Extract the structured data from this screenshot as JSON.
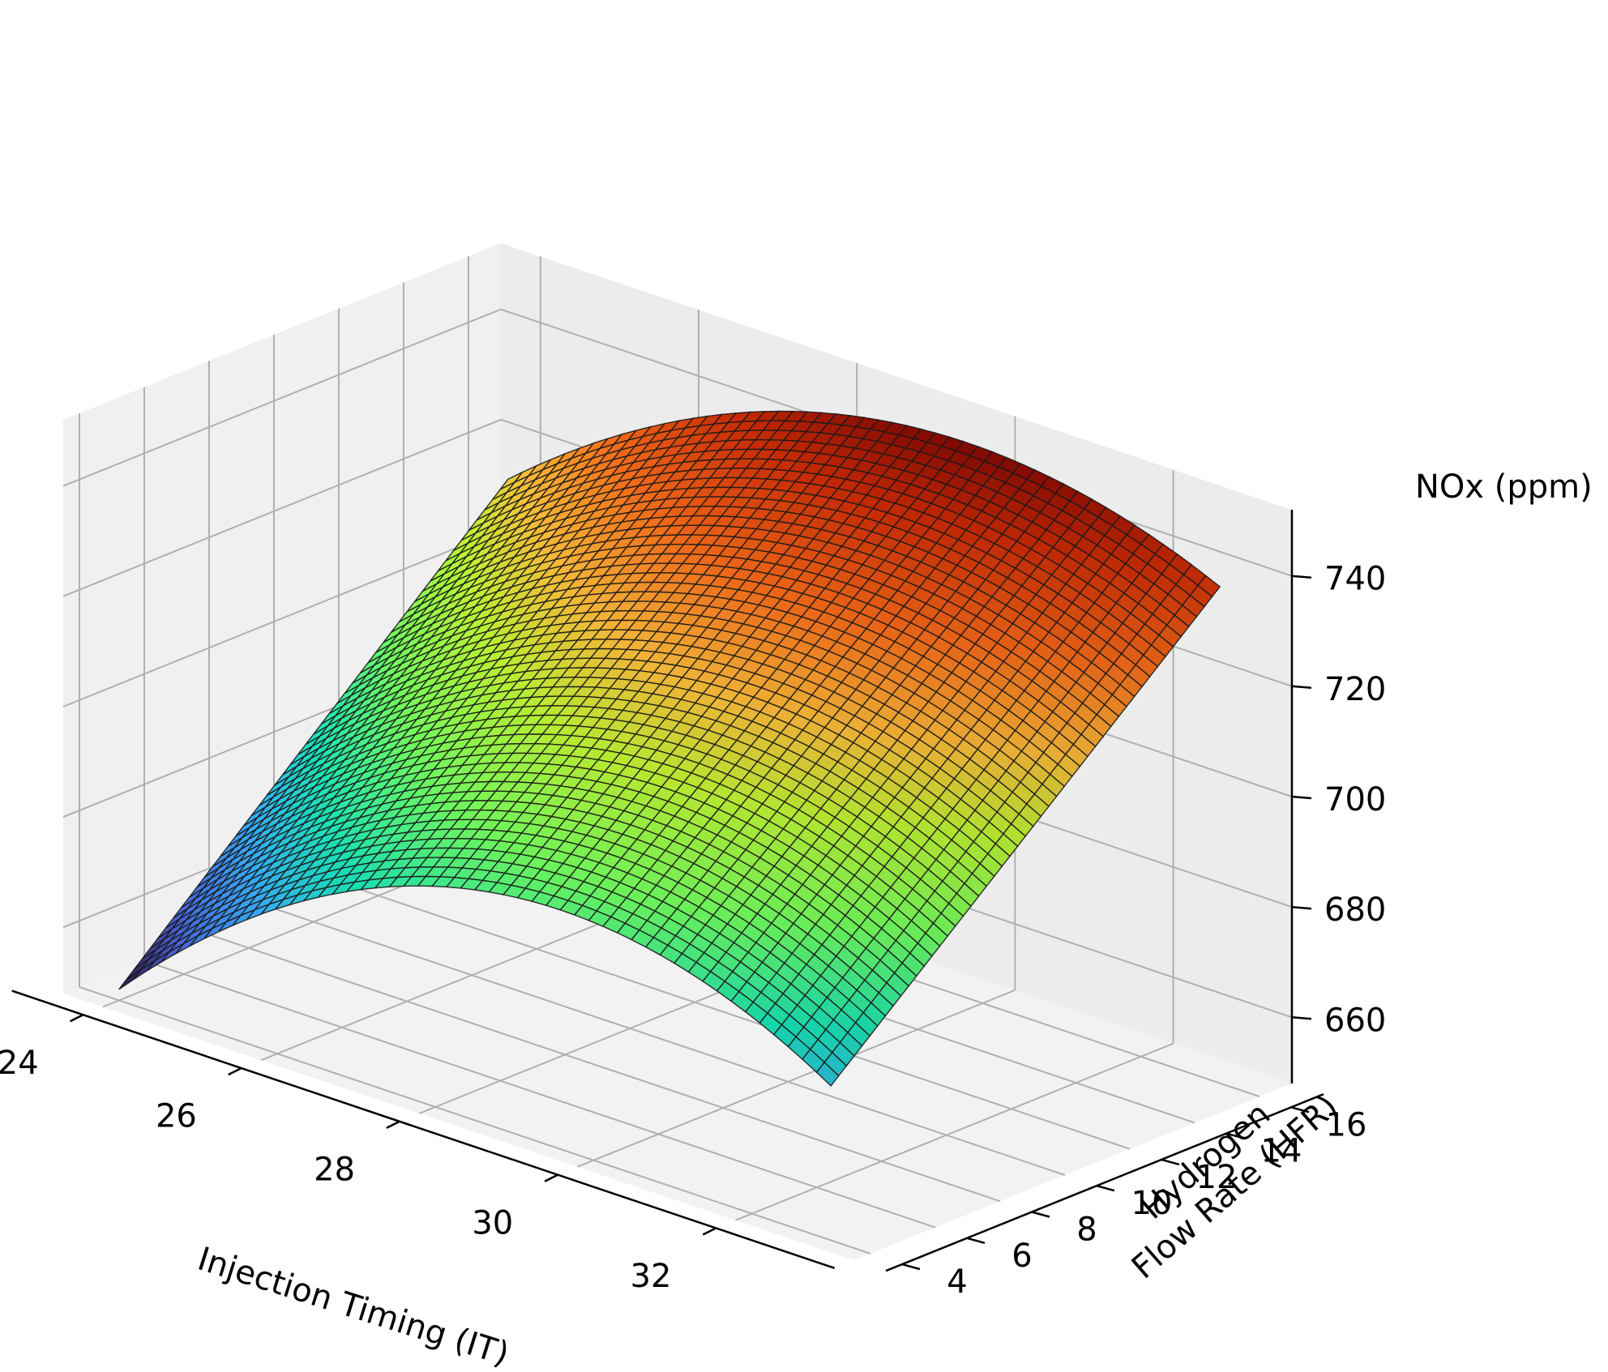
{
  "chart_data": {
    "type": "surface3d",
    "title": "",
    "x_axis": {
      "label": "Injection Timing (IT)",
      "range": [
        23.5,
        33.5
      ],
      "ticks": [
        24,
        26,
        28,
        30,
        32
      ]
    },
    "y_axis": {
      "label_lines": [
        "Hydrogen",
        "Flow Rate (HFR)"
      ],
      "range": [
        3.5,
        17
      ],
      "ticks": [
        4,
        6,
        8,
        10,
        12,
        14,
        16
      ]
    },
    "z_axis": {
      "label": "NOx (ppm)",
      "range": [
        648,
        752
      ],
      "ticks": [
        660,
        680,
        700,
        720,
        740
      ]
    },
    "grid": true,
    "colormap": "turbo",
    "color_range": [
      650,
      750
    ],
    "surface": {
      "x_range": [
        24,
        33
      ],
      "y_range": [
        4,
        16
      ],
      "resolution": 50,
      "samples": [
        {
          "x": 24,
          "y": 4,
          "z": 650
        },
        {
          "x": 28,
          "y": 4,
          "z": 688
        },
        {
          "x": 33,
          "y": 4,
          "z": 676
        },
        {
          "x": 24,
          "y": 16,
          "z": 714
        },
        {
          "x": 29,
          "y": 16,
          "z": 748
        },
        {
          "x": 33,
          "y": 16,
          "z": 738
        }
      ]
    }
  }
}
